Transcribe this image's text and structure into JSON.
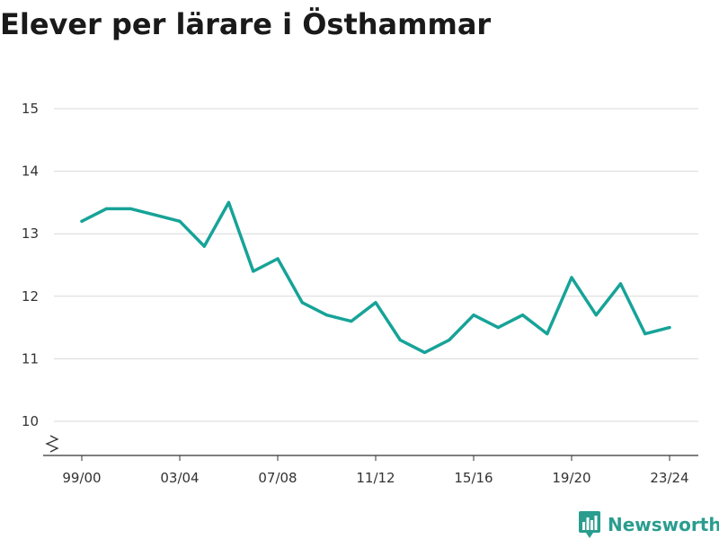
{
  "chart_data": {
    "type": "line",
    "title": "Elever per lärare i Östhammar",
    "xlabel": "",
    "ylabel": "",
    "ylim": [
      10,
      15
    ],
    "y_ticks": [
      "10",
      "11",
      "12",
      "13",
      "14",
      "15"
    ],
    "x_tick_labels": [
      "99/00",
      "03/04",
      "07/08",
      "11/12",
      "15/16",
      "19/20",
      "23/24"
    ],
    "grid": true,
    "legend": "none",
    "series": [
      {
        "color": "#17a398",
        "x": [
          "99/00",
          "00/01",
          "01/02",
          "02/03",
          "03/04",
          "04/05",
          "05/06",
          "06/07",
          "07/08",
          "08/09",
          "09/10",
          "10/11",
          "11/12",
          "12/13",
          "13/14",
          "14/15",
          "15/16",
          "16/17",
          "17/18",
          "18/19",
          "19/20",
          "20/21",
          "21/22",
          "22/23",
          "23/24"
        ],
        "values": [
          13.2,
          13.4,
          13.4,
          13.3,
          13.2,
          12.8,
          13.5,
          12.4,
          12.6,
          11.9,
          11.7,
          11.6,
          11.9,
          11.3,
          11.1,
          11.3,
          11.7,
          11.5,
          11.7,
          11.4,
          12.3,
          11.7,
          12.2,
          11.4,
          11.5
        ]
      }
    ]
  },
  "branding": {
    "logo_text": "Newsworthy",
    "logo_icon": "bar-chart-icon",
    "color": "#2a9d8f"
  }
}
